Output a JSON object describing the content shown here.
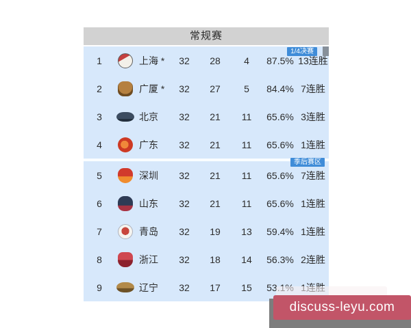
{
  "standings": {
    "title": "常规赛",
    "badges": {
      "quarterfinal": "1/4决赛",
      "playoff_zone": "季后赛区"
    },
    "rows": [
      {
        "rank": "1",
        "team": "上海 *",
        "logo": "shanghai-sharks-logo-icon",
        "played": "32",
        "wins": "28",
        "losses": "4",
        "win_pct": "87.5%",
        "streak": "13连胜"
      },
      {
        "rank": "2",
        "team": "广厦 *",
        "logo": "guangsha-lions-logo-icon",
        "played": "32",
        "wins": "27",
        "losses": "5",
        "win_pct": "84.4%",
        "streak": "7连胜"
      },
      {
        "rank": "3",
        "team": "北京",
        "logo": "beijing-ducks-logo-icon",
        "played": "32",
        "wins": "21",
        "losses": "11",
        "win_pct": "65.6%",
        "streak": "3连胜"
      },
      {
        "rank": "4",
        "team": "广东",
        "logo": "guangdong-tigers-logo-icon",
        "played": "32",
        "wins": "21",
        "losses": "11",
        "win_pct": "65.6%",
        "streak": "1连胜"
      },
      {
        "rank": "5",
        "team": "深圳",
        "logo": "shenzhen-leopards-logo-icon",
        "played": "32",
        "wins": "21",
        "losses": "11",
        "win_pct": "65.6%",
        "streak": "7连胜"
      },
      {
        "rank": "6",
        "team": "山东",
        "logo": "shandong-heroes-logo-icon",
        "played": "32",
        "wins": "21",
        "losses": "11",
        "win_pct": "65.6%",
        "streak": "1连胜"
      },
      {
        "rank": "7",
        "team": "青岛",
        "logo": "qingdao-eagles-logo-icon",
        "played": "32",
        "wins": "19",
        "losses": "13",
        "win_pct": "59.4%",
        "streak": "1连胜"
      },
      {
        "rank": "8",
        "team": "浙江",
        "logo": "zhejiang-golden-bulls-logo-icon",
        "played": "32",
        "wins": "18",
        "losses": "14",
        "win_pct": "56.3%",
        "streak": "2连胜"
      },
      {
        "rank": "9",
        "team": "辽宁",
        "logo": "liaoning-flying-leopards-logo-icon",
        "played": "32",
        "wins": "17",
        "losses": "15",
        "win_pct": "53.1%",
        "streak": "1连胜"
      }
    ]
  },
  "watermark": {
    "text": "discuss-leyu.com"
  },
  "colors": {
    "table_header_bg": "#d2d2d2",
    "table_body_bg": "#d7e8fb",
    "badge_bg": "#3f8cd8",
    "badge_text": "#ffffff",
    "row_text": "#2c2c2c",
    "playoff_divider": "#f2f8fe",
    "watermark_panel_bg": "#7d7d7d",
    "watermark_pill_bg": "#c25568",
    "watermark_text": "#ffffff"
  }
}
